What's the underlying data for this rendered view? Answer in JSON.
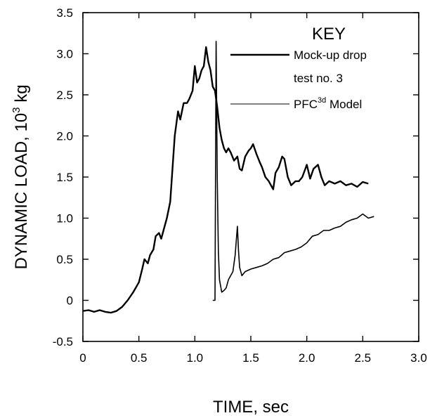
{
  "chart_data": {
    "type": "line",
    "xlabel": "TIME, sec",
    "ylabel_main": "DYNAMIC LOAD, 10",
    "ylabel_exp": "3",
    "ylabel_unit": " kg",
    "xlim": [
      0,
      3.0
    ],
    "ylim": [
      -0.5,
      3.5
    ],
    "xticks": [
      "0",
      "0.5",
      "1.0",
      "1.5",
      "2.0",
      "2.5",
      "3.0"
    ],
    "yticks": [
      "-0.5",
      "0",
      "0.5",
      "1.0",
      "1.5",
      "2.0",
      "2.5",
      "3.0",
      "3.5"
    ],
    "grid": false,
    "legend": {
      "title": "KEY",
      "placement": "top-right",
      "entries": [
        {
          "line1": "Mock-up drop",
          "line2": "test no. 3",
          "color": "#000000",
          "width": "thick"
        },
        {
          "pre": "PFC",
          "sup": "3d",
          "post": " Model",
          "color": "#000000",
          "width": "thin"
        }
      ]
    },
    "series": [
      {
        "name": "Mock-up drop test no. 3",
        "color": "#000000",
        "x": [
          0,
          0.05,
          0.1,
          0.15,
          0.2,
          0.25,
          0.3,
          0.35,
          0.4,
          0.45,
          0.5,
          0.53,
          0.55,
          0.58,
          0.6,
          0.63,
          0.65,
          0.68,
          0.7,
          0.72,
          0.75,
          0.78,
          0.8,
          0.82,
          0.85,
          0.87,
          0.9,
          0.93,
          0.95,
          0.98,
          1.0,
          1.02,
          1.04,
          1.06,
          1.08,
          1.1,
          1.12,
          1.14,
          1.16,
          1.18,
          1.2,
          1.22,
          1.24,
          1.26,
          1.28,
          1.3,
          1.32,
          1.35,
          1.38,
          1.4,
          1.42,
          1.45,
          1.48,
          1.5,
          1.52,
          1.55,
          1.58,
          1.6,
          1.63,
          1.66,
          1.7,
          1.72,
          1.75,
          1.78,
          1.8,
          1.83,
          1.86,
          1.9,
          1.93,
          1.96,
          2.0,
          2.03,
          2.06,
          2.1,
          2.13,
          2.16,
          2.2,
          2.25,
          2.3,
          2.35,
          2.4,
          2.45,
          2.5,
          2.55
        ],
        "y": [
          -0.13,
          -0.12,
          -0.14,
          -0.12,
          -0.14,
          -0.15,
          -0.13,
          -0.08,
          0.0,
          0.1,
          0.22,
          0.38,
          0.5,
          0.45,
          0.55,
          0.62,
          0.78,
          0.82,
          0.75,
          0.85,
          1.0,
          1.2,
          1.6,
          2.0,
          2.3,
          2.2,
          2.4,
          2.4,
          2.45,
          2.55,
          2.85,
          2.65,
          2.7,
          2.8,
          2.85,
          3.08,
          2.9,
          2.8,
          2.6,
          2.55,
          2.35,
          2.1,
          1.95,
          1.85,
          1.8,
          1.85,
          1.8,
          1.7,
          1.75,
          1.6,
          1.58,
          1.75,
          1.82,
          1.85,
          1.9,
          1.78,
          1.68,
          1.62,
          1.5,
          1.45,
          1.35,
          1.55,
          1.62,
          1.75,
          1.72,
          1.5,
          1.4,
          1.45,
          1.45,
          1.5,
          1.65,
          1.48,
          1.6,
          1.65,
          1.5,
          1.4,
          1.45,
          1.42,
          1.45,
          1.4,
          1.42,
          1.38,
          1.44,
          1.42
        ]
      },
      {
        "name": "PFC 3d Model",
        "color": "#000000",
        "x": [
          1.16,
          1.17,
          1.18,
          1.19,
          1.2,
          1.21,
          1.22,
          1.24,
          1.26,
          1.28,
          1.3,
          1.32,
          1.34,
          1.36,
          1.38,
          1.39,
          1.4,
          1.42,
          1.45,
          1.5,
          1.55,
          1.6,
          1.65,
          1.7,
          1.75,
          1.8,
          1.85,
          1.9,
          1.95,
          2.0,
          2.05,
          2.1,
          2.15,
          2.2,
          2.25,
          2.3,
          2.35,
          2.4,
          2.45,
          2.5,
          2.55,
          2.6
        ],
        "y": [
          0.0,
          0.0,
          0.0,
          3.15,
          1.5,
          0.6,
          0.25,
          0.1,
          0.12,
          0.15,
          0.25,
          0.3,
          0.35,
          0.55,
          0.9,
          0.6,
          0.4,
          0.3,
          0.35,
          0.38,
          0.4,
          0.42,
          0.45,
          0.5,
          0.52,
          0.58,
          0.6,
          0.62,
          0.65,
          0.7,
          0.78,
          0.8,
          0.85,
          0.85,
          0.88,
          0.9,
          0.95,
          0.98,
          1.0,
          1.05,
          1.0,
          1.02
        ]
      }
    ]
  }
}
